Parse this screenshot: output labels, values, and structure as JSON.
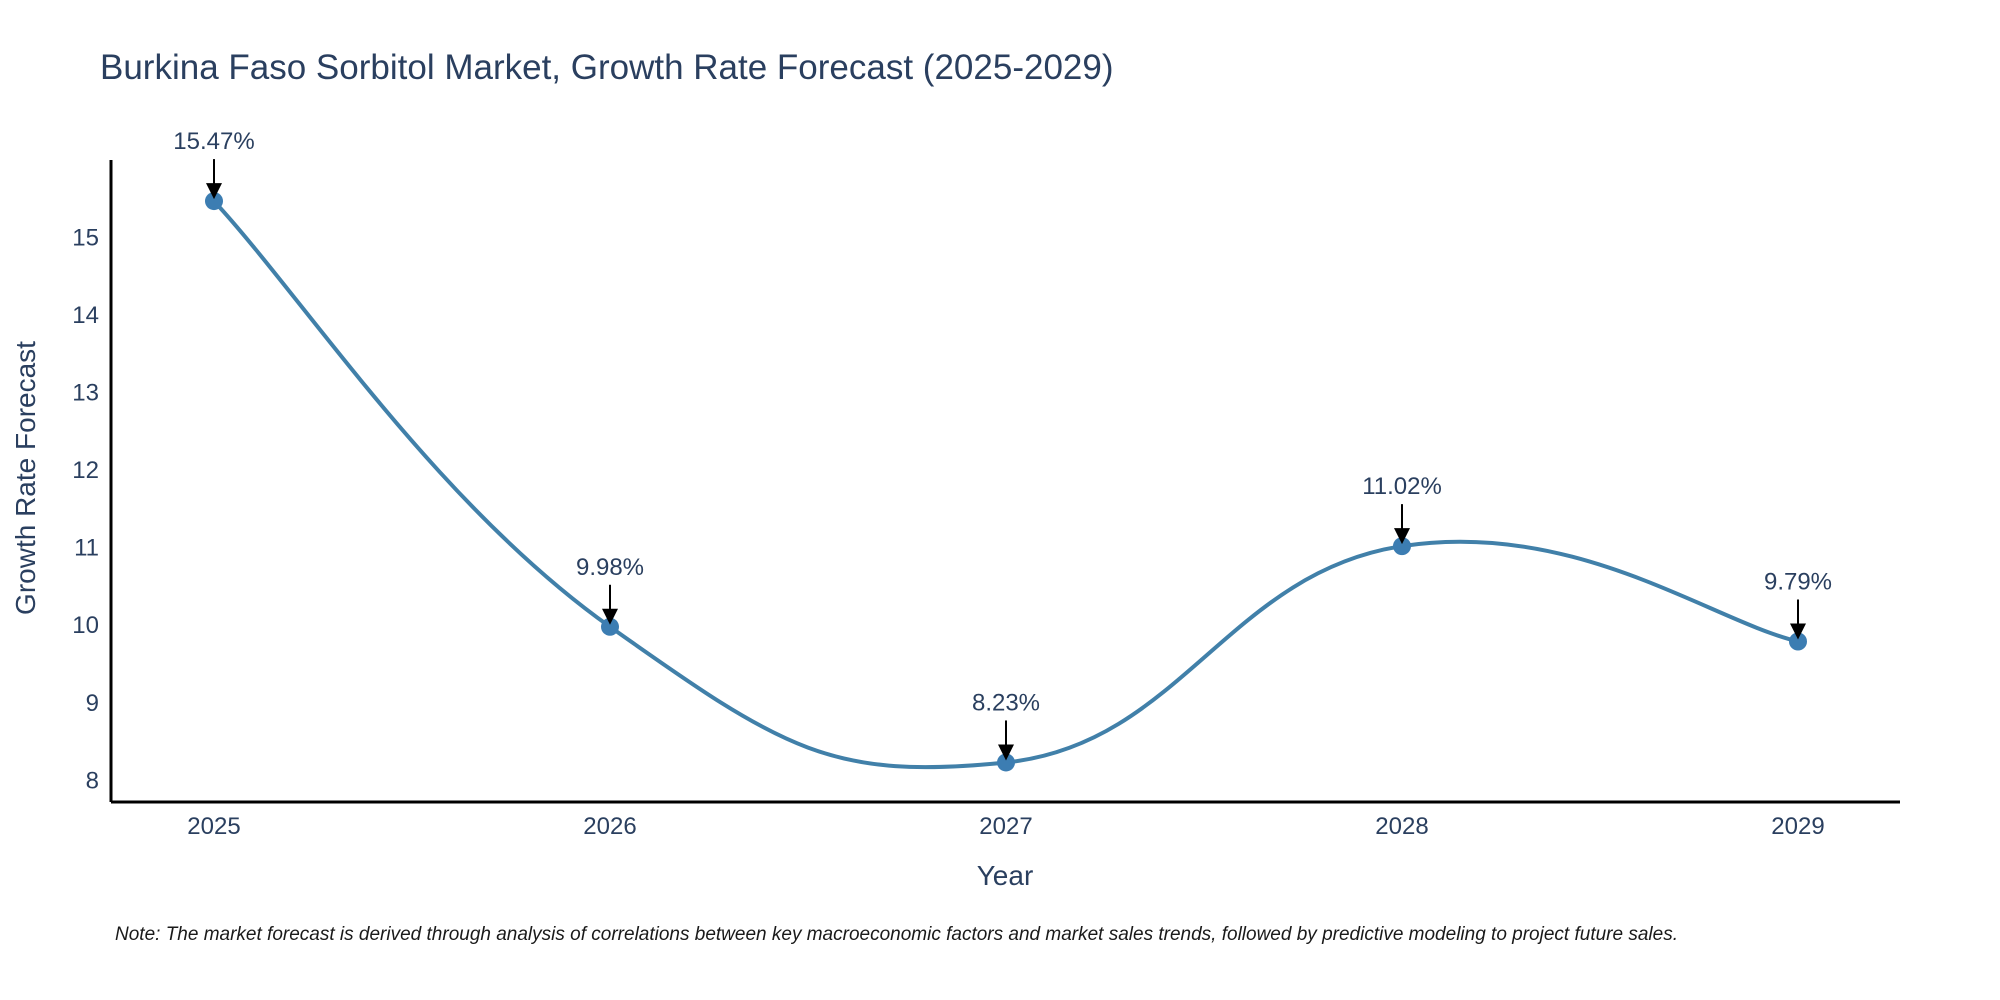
{
  "chart_data": {
    "type": "line",
    "title": "Burkina Faso Sorbitol Market, Growth Rate Forecast (2025-2029)",
    "xlabel": "Year",
    "ylabel": "Growth Rate Forecast",
    "categories": [
      "2025",
      "2026",
      "2027",
      "2028",
      "2029"
    ],
    "values": [
      15.47,
      9.98,
      8.23,
      11.02,
      9.79
    ],
    "data_labels": [
      "15.47%",
      "9.98%",
      "8.23%",
      "11.02%",
      "9.79%"
    ],
    "yticks": [
      "8",
      "9",
      "10",
      "11",
      "12",
      "13",
      "14",
      "15"
    ],
    "ylim": [
      7.72,
      16.0
    ],
    "line_color": "#4180a9",
    "marker_color": "#3c7db2",
    "arrow_color": "#000000",
    "note": "Note: The market forecast is derived through analysis of correlations between key macroeconomic factors and market sales trends, followed by predictive modeling to project future sales."
  }
}
